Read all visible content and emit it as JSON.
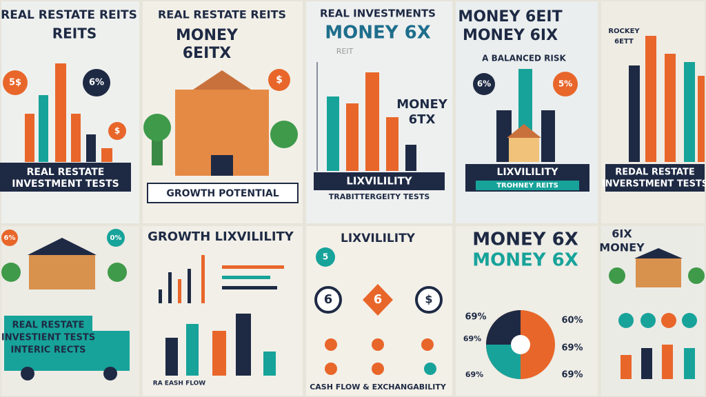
{
  "panels": [
    {
      "title": "REAL RESTATE REITS",
      "subtitle": "REITS",
      "badges": [
        "5$",
        "6%",
        "$"
      ],
      "banner": [
        "REAL RESTATE",
        "INVESTMENT TESTS"
      ]
    },
    {
      "title": "REAL RESTATE REITS",
      "subtitle": [
        "MONEY",
        "6EITX"
      ],
      "badges": [
        "$"
      ],
      "banner": [
        "GROWTH POTENTIAL"
      ]
    },
    {
      "title": "REAL INVESTMENTS",
      "subtitle": [
        "MONEY 6X",
        "REIT"
      ],
      "side": [
        "MONEY",
        "6TX"
      ],
      "banner": [
        "LIXVILILITY",
        "TRABITTERGEITY TESTS"
      ]
    },
    {
      "title": [
        "MONEY 6EIT",
        "MONEY 6IX"
      ],
      "subtitle": "A BALANCED RISK",
      "badges": [
        "6%",
        "5%"
      ],
      "banner": [
        "LIXVILILITY",
        "TROHNEY REITS"
      ]
    },
    {
      "title": [
        "ROCKEY",
        "6ETT"
      ],
      "banner": [
        "REDAL RESTATE",
        "INVERSTMENT TESTS"
      ]
    },
    {
      "badges": [
        "6%",
        "0%"
      ],
      "banner": [
        "REAL RESTATE",
        "INVESTIENT TESTS",
        "INTERIC RECTS"
      ]
    },
    {
      "title": "GROWTH  LIXVILILITY",
      "footer": "RA EASH FLOW"
    },
    {
      "title": "LIXVILILITY",
      "badges": [
        "5",
        "6",
        "6",
        "$"
      ],
      "footer": "CASH FLOW & EXCHANGABILITY"
    },
    {
      "title": [
        "MONEY 6X",
        "MONEY 6X"
      ],
      "labels": [
        "69%",
        "60%",
        "69%",
        "69%",
        "69%",
        "69%"
      ]
    },
    {
      "title": [
        "6IX",
        "MONEY"
      ]
    }
  ]
}
